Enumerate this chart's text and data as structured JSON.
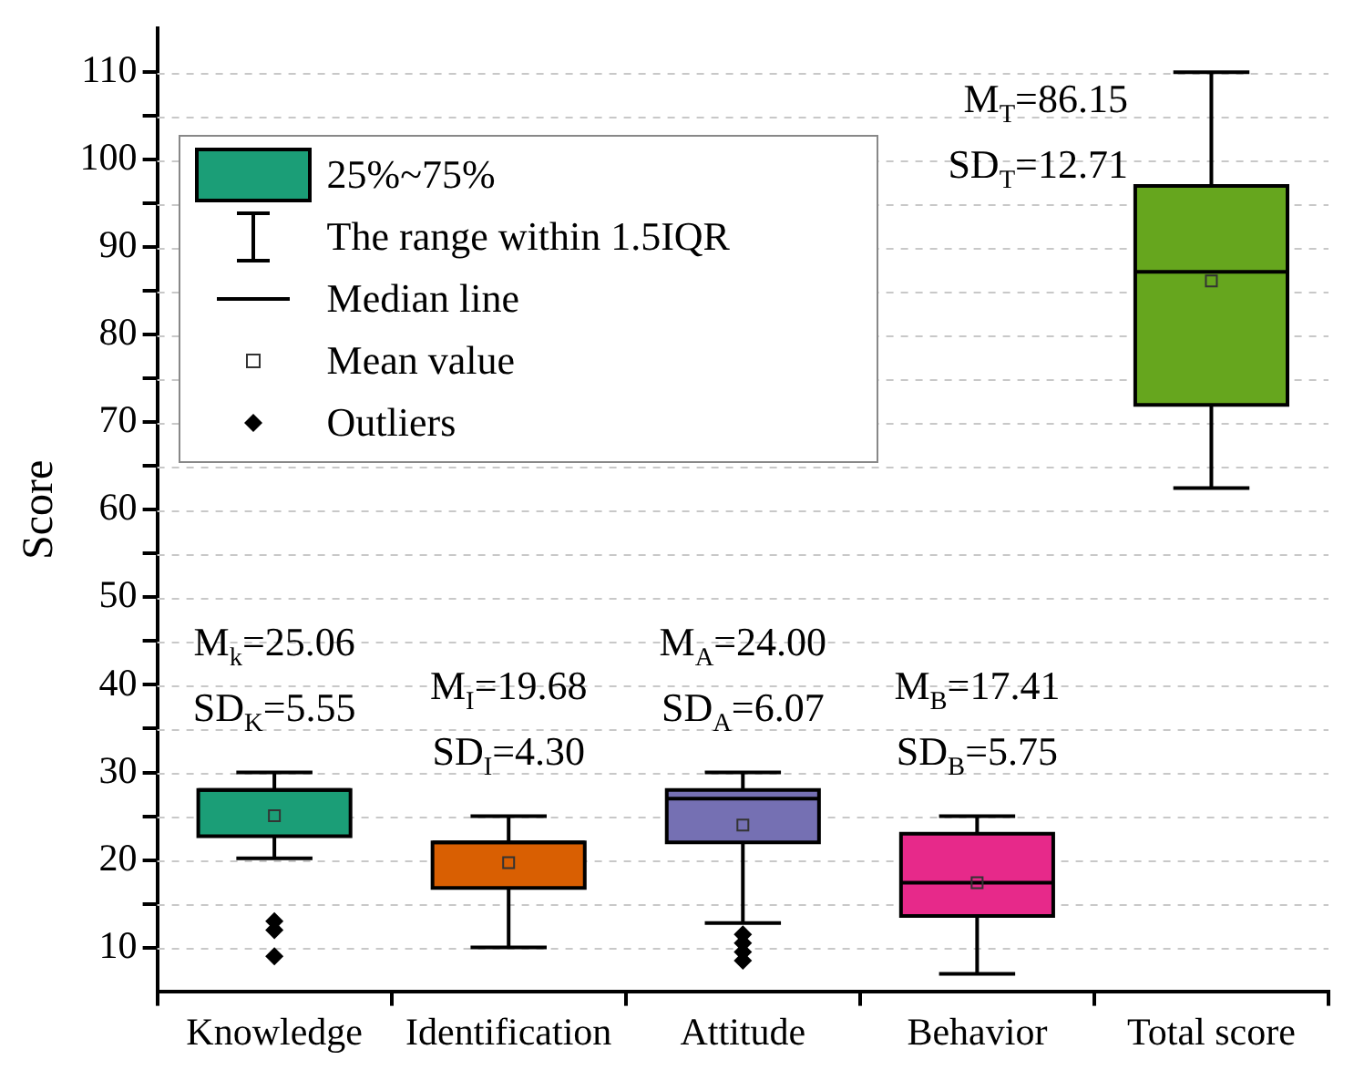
{
  "chart_data": {
    "type": "box",
    "ylabel": "Score",
    "categories": [
      "Knowledge",
      "Identification",
      "Attitude",
      "Behavior",
      "Total score"
    ],
    "colors": [
      "#1b9e77",
      "#d95f02",
      "#7570b3",
      "#e7298a",
      "#66a61e"
    ],
    "boxes": [
      {
        "low": 20.2,
        "q1": 22.7,
        "median": 28,
        "q3": 28,
        "high": 30,
        "mean": 25.06,
        "outliers": [
          13,
          12,
          9
        ]
      },
      {
        "low": 10,
        "q1": 16.8,
        "median": 22,
        "q3": 22,
        "high": 25,
        "mean": 19.68
      },
      {
        "low": 12.8,
        "q1": 22,
        "median": 27,
        "q3": 28,
        "high": 30,
        "mean": 24,
        "outliers": [
          11.5,
          10.5,
          9.5,
          8.5
        ]
      },
      {
        "low": 7,
        "q1": 13.6,
        "median": 17.4,
        "q3": 23,
        "high": 25,
        "mean": 17.41
      },
      {
        "low": 62.5,
        "q1": 72,
        "median": 87.2,
        "q3": 97,
        "high": 110,
        "mean": 86.15
      }
    ],
    "ylim": [
      5,
      115
    ],
    "yticks": [
      10,
      {
        "value": 15,
        "label": null
      },
      20,
      {
        "value": 25,
        "label": null
      },
      30,
      {
        "value": 35,
        "label": null
      },
      40,
      {
        "value": 45,
        "label": null
      },
      50,
      {
        "value": 55,
        "label": null
      },
      60,
      {
        "value": 65,
        "label": null
      },
      70,
      {
        "value": 75,
        "label": null
      },
      80,
      {
        "value": 85,
        "label": null
      },
      90,
      {
        "value": 95,
        "label": null
      },
      100,
      {
        "value": 105,
        "label": null
      },
      110
    ],
    "grid": "y",
    "marker": "diamond",
    "annotations": [
      "25%~75%",
      "The range within 1.5IQR",
      "Median line",
      "Mean value",
      "Outliers",
      "M$_{k}$=25.06",
      "SD$_{K}$=5.55",
      "M$_{I}$=19.68",
      "SD$_{I}$=4.30",
      "M$_{A}$=24.00",
      "SD$_{A}$=6.07",
      "M$_{B}$=17.41",
      "SD$_{B}$=5.75",
      "M$_{T}$=86.15",
      "SD$_{T}$=12.71"
    ]
  }
}
